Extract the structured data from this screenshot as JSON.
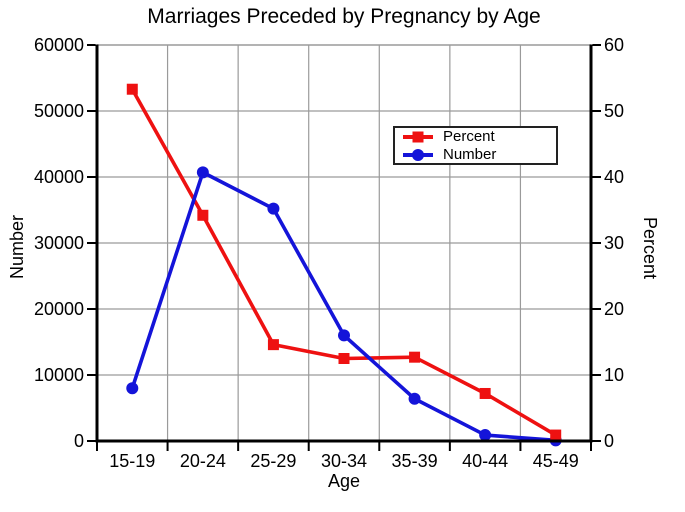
{
  "chart_data": {
    "type": "line",
    "title": "Marriages Preceded by Pregnancy by Age",
    "xlabel": "Age",
    "ylabel_left": "Number",
    "ylabel_right": "Percent",
    "categories": [
      "15-19",
      "20-24",
      "25-29",
      "30-34",
      "35-39",
      "40-44",
      "45-49"
    ],
    "series": [
      {
        "name": "Percent",
        "axis": "right",
        "color": "#ee1111",
        "marker": "square",
        "values": [
          53.3,
          34.2,
          14.6,
          12.5,
          12.7,
          7.2,
          0.9
        ]
      },
      {
        "name": "Number",
        "axis": "left",
        "color": "#1414d9",
        "marker": "circle",
        "values": [
          8000,
          40700,
          35200,
          16000,
          6400,
          900,
          100
        ]
      }
    ],
    "axis_left": {
      "min": 0,
      "max": 60000,
      "tick_step": 10000,
      "tick_labels": [
        "0",
        "10000",
        "20000",
        "30000",
        "40000",
        "50000",
        "60000"
      ]
    },
    "axis_right": {
      "min": 0,
      "max": 60,
      "tick_step": 10,
      "tick_labels": [
        "0",
        "10",
        "20",
        "30",
        "40",
        "50",
        "60"
      ]
    },
    "legend": {
      "entries": [
        "Percent",
        "Number"
      ],
      "position": "center-right"
    },
    "grid": true,
    "grid_color": "#9a9a9a",
    "spine_color": "#000000",
    "background": "#ffffff"
  }
}
